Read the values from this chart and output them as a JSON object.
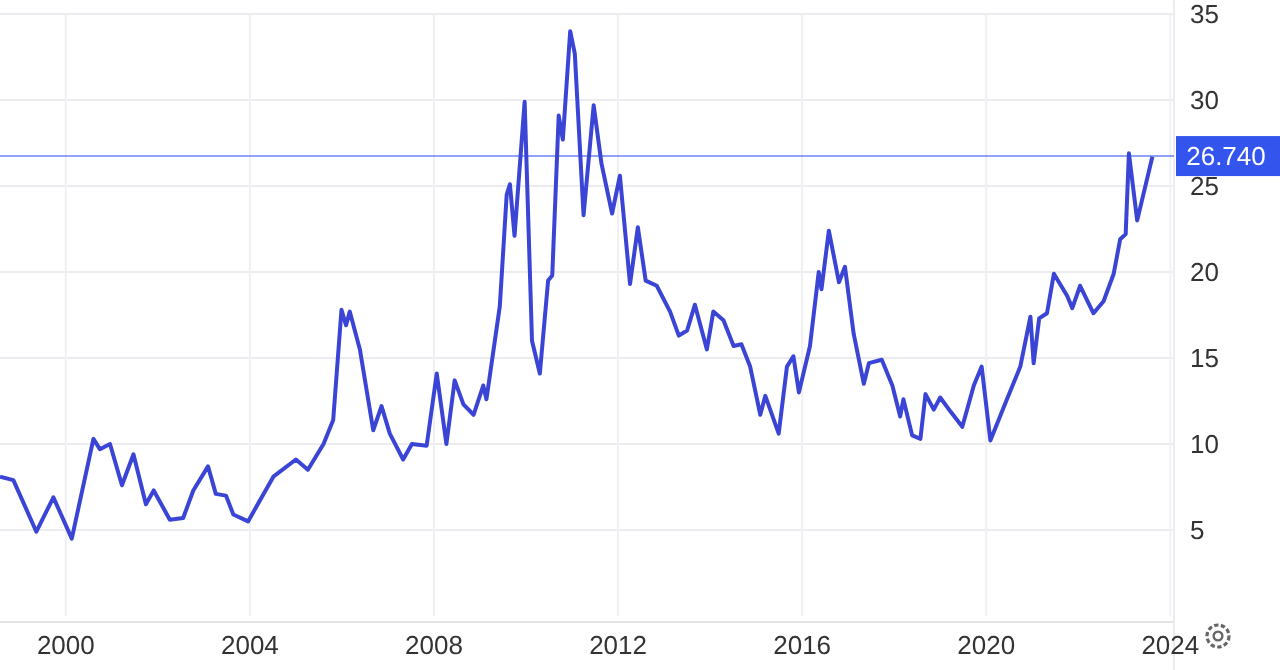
{
  "chart_data": {
    "type": "line",
    "x": [
      1998.57,
      1998.86,
      1999.36,
      1999.73,
      2000.13,
      2000.6,
      2000.74,
      2000.96,
      2001.22,
      2001.47,
      2001.74,
      2001.91,
      2002.26,
      2002.55,
      2002.77,
      2003.09,
      2003.26,
      2003.48,
      2003.64,
      2003.96,
      2004.51,
      2005.0,
      2005.26,
      2005.6,
      2005.81,
      2005.99,
      2006.09,
      2006.17,
      2006.39,
      2006.68,
      2006.86,
      2007.04,
      2007.33,
      2007.52,
      2007.84,
      2008.06,
      2008.27,
      2008.45,
      2008.64,
      2008.86,
      2009.07,
      2009.14,
      2009.43,
      2009.58,
      2009.65,
      2009.75,
      2009.97,
      2010.13,
      2010.3,
      2010.48,
      2010.57,
      2010.71,
      2010.8,
      2010.96,
      2011.06,
      2011.25,
      2011.47,
      2011.64,
      2011.87,
      2012.04,
      2012.26,
      2012.43,
      2012.6,
      2012.84,
      2013.13,
      2013.32,
      2013.5,
      2013.67,
      2013.93,
      2014.07,
      2014.29,
      2014.51,
      2014.68,
      2014.87,
      2015.09,
      2015.2,
      2015.49,
      2015.67,
      2015.81,
      2015.93,
      2016.17,
      2016.36,
      2016.42,
      2016.58,
      2016.8,
      2016.93,
      2017.12,
      2017.34,
      2017.45,
      2017.73,
      2017.96,
      2018.13,
      2018.2,
      2018.39,
      2018.57,
      2018.68,
      2018.86,
      2019.0,
      2019.22,
      2019.48,
      2019.73,
      2019.9,
      2020.09,
      2020.45,
      2020.74,
      2020.96,
      2021.03,
      2021.15,
      2021.32,
      2021.47,
      2021.76,
      2021.87,
      2022.04,
      2022.33,
      2022.55,
      2022.77,
      2022.91,
      2023.03,
      2023.1,
      2023.28,
      2023.61
    ],
    "series": [
      {
        "color": "#3a45d6",
        "values": [
          8.1,
          7.9,
          4.9,
          6.9,
          4.5,
          10.3,
          9.7,
          10.0,
          7.6,
          9.4,
          6.5,
          7.3,
          5.6,
          5.7,
          7.3,
          8.7,
          7.1,
          7.0,
          5.9,
          5.5,
          8.1,
          9.1,
          8.5,
          10.0,
          11.4,
          17.8,
          16.9,
          17.7,
          15.5,
          10.8,
          12.2,
          10.6,
          9.1,
          10.0,
          9.9,
          14.1,
          10.0,
          13.7,
          12.3,
          11.7,
          13.4,
          12.6,
          18.0,
          24.5,
          25.1,
          22.1,
          29.9,
          16.0,
          14.1,
          19.5,
          19.8,
          29.1,
          27.7,
          34.0,
          32.7,
          23.3,
          29.7,
          26.3,
          23.4,
          25.6,
          19.3,
          22.6,
          19.5,
          19.2,
          17.7,
          16.3,
          16.6,
          18.1,
          15.5,
          17.7,
          17.2,
          15.7,
          15.8,
          14.5,
          11.7,
          12.8,
          10.6,
          14.5,
          15.1,
          13.0,
          15.7,
          20.0,
          19.0,
          22.4,
          19.4,
          20.3,
          16.4,
          13.5,
          14.7,
          14.9,
          13.4,
          11.6,
          12.6,
          10.5,
          10.3,
          12.9,
          12.0,
          12.7,
          11.9,
          11.0,
          13.4,
          14.5,
          10.2,
          12.6,
          14.5,
          17.4,
          14.7,
          17.3,
          17.6,
          19.9,
          18.6,
          17.9,
          19.2,
          17.6,
          18.3,
          19.9,
          21.9,
          22.2,
          26.9,
          23.0,
          26.7
        ]
      }
    ],
    "xlim": [
      1998.57,
      2024.08
    ],
    "xticks": [
      2000,
      2004,
      2008,
      2012,
      2016,
      2020,
      2024
    ],
    "ylim": [
      0,
      35
    ],
    "yticks": [
      5,
      10,
      15,
      20,
      25,
      30,
      35
    ],
    "grid": true,
    "ref_lines": [
      {
        "axis": "y",
        "value": 26.74,
        "label": "26.740",
        "color": "#3355ee"
      }
    ]
  }
}
